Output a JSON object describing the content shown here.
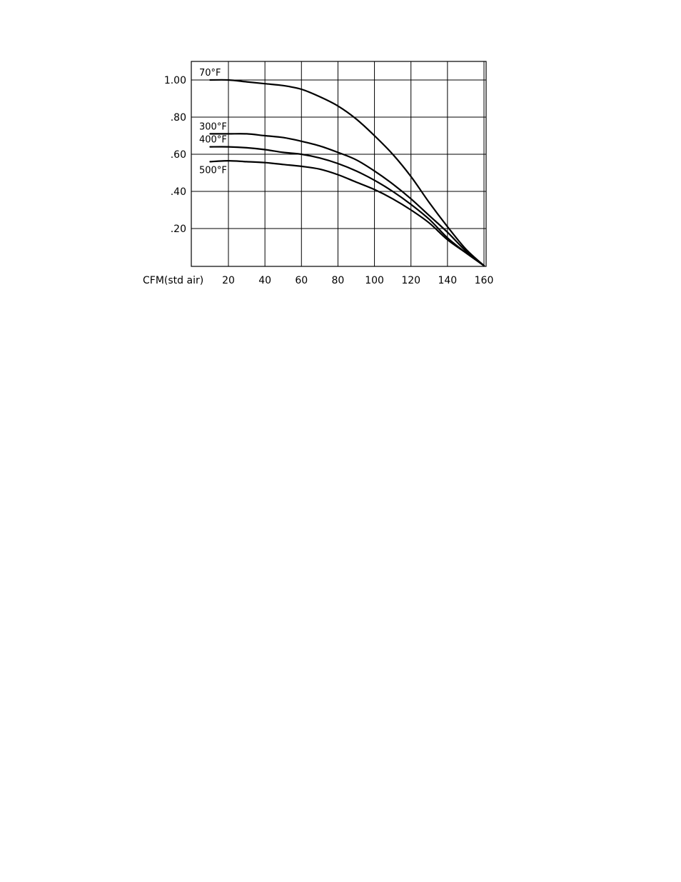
{
  "chart_data": {
    "type": "line",
    "title": "",
    "xlabel": "CFM(std  air)",
    "ylabel": "",
    "xlim": [
      0,
      160
    ],
    "ylim": [
      0,
      1.1
    ],
    "x_ticks": [
      20,
      40,
      60,
      80,
      100,
      120,
      140,
      160
    ],
    "x_tick_labels": [
      "20",
      "40",
      "60",
      "80",
      "100",
      "120",
      "140",
      "160"
    ],
    "y_ticks": [
      0.2,
      0.4,
      0.6,
      0.8,
      1.0
    ],
    "y_tick_labels": [
      ".20",
      ".40",
      ".60",
      ".80",
      "1.00"
    ],
    "grid": true,
    "series": [
      {
        "name": "70°F",
        "x": [
          10,
          20,
          30,
          40,
          50,
          60,
          70,
          80,
          90,
          100,
          110,
          120,
          130,
          140,
          150,
          160
        ],
        "y": [
          1.0,
          1.0,
          0.99,
          0.98,
          0.97,
          0.95,
          0.91,
          0.86,
          0.79,
          0.7,
          0.6,
          0.48,
          0.34,
          0.21,
          0.09,
          0.0
        ]
      },
      {
        "name": "300°F",
        "x": [
          10,
          20,
          30,
          40,
          50,
          60,
          70,
          80,
          90,
          100,
          110,
          120,
          130,
          140,
          150,
          160
        ],
        "y": [
          0.71,
          0.71,
          0.71,
          0.7,
          0.69,
          0.67,
          0.645,
          0.61,
          0.57,
          0.51,
          0.44,
          0.36,
          0.27,
          0.18,
          0.08,
          0.0
        ]
      },
      {
        "name": "400°F",
        "x": [
          10,
          20,
          30,
          40,
          50,
          60,
          70,
          80,
          90,
          100,
          110,
          120,
          130,
          140,
          150,
          160
        ],
        "y": [
          0.64,
          0.64,
          0.635,
          0.625,
          0.61,
          0.6,
          0.58,
          0.55,
          0.51,
          0.46,
          0.4,
          0.33,
          0.25,
          0.15,
          0.07,
          0.0
        ]
      },
      {
        "name": "500°F",
        "x": [
          10,
          20,
          30,
          40,
          50,
          60,
          70,
          80,
          90,
          100,
          110,
          120,
          130,
          140,
          150,
          160
        ],
        "y": [
          0.56,
          0.565,
          0.56,
          0.555,
          0.545,
          0.535,
          0.52,
          0.49,
          0.45,
          0.41,
          0.36,
          0.3,
          0.23,
          0.14,
          0.07,
          0.0
        ]
      }
    ]
  }
}
